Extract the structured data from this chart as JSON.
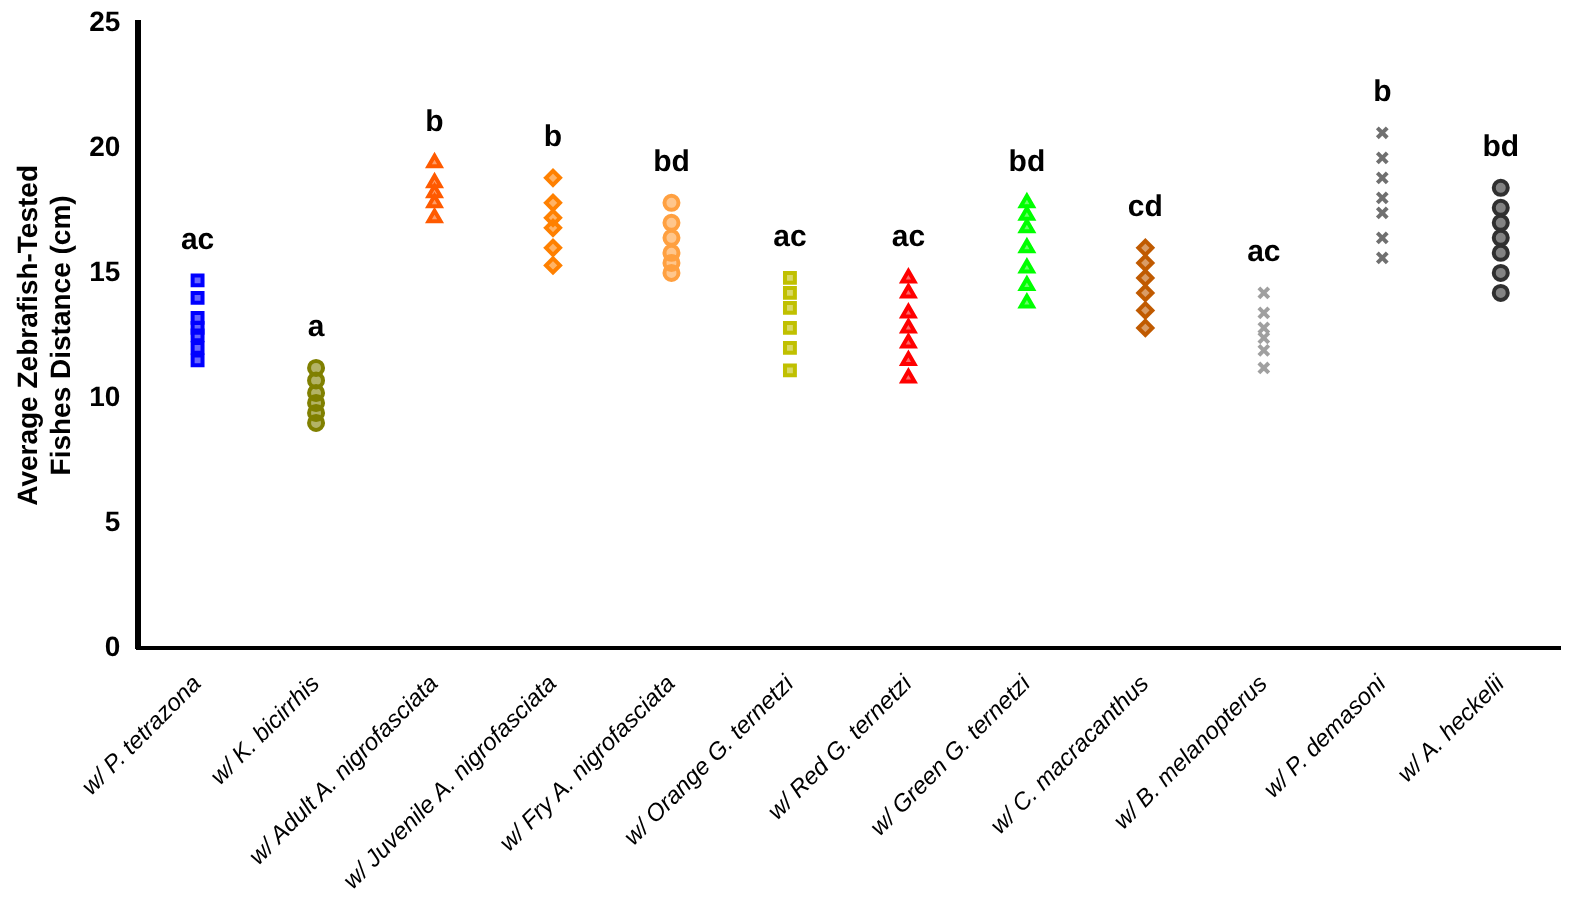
{
  "chart_data": {
    "type": "scatter",
    "ylabel": "Average Zebrafish-Tested Fishes Distance (cm)",
    "categories": [
      "w/ P. tetrazona",
      "w/ K. bicirrhis",
      "w/ Adult A. nigrofasciata",
      "w/ Juvenile A. nigrofasciata",
      "w/ Fry A. nigrofasciata",
      "w/ Orange G. ternetzi",
      "w/ Red G. ternetzi",
      "w/ Green G. ternetzi",
      "w/ C. macracanthus",
      "w/ B. melanopterus",
      "w/ P. demasoni",
      "w/ A. heckelii"
    ],
    "ylim": [
      0,
      25
    ],
    "yticks": [
      0,
      5,
      10,
      15,
      20,
      25
    ],
    "grid": false,
    "legend": false,
    "series": [
      {
        "color": "#0000ff",
        "marker": "square",
        "x": [
          "w/ P. tetrazona",
          "w/ P. tetrazona",
          "w/ P. tetrazona",
          "w/ P. tetrazona",
          "w/ P. tetrazona",
          "w/ P. tetrazona",
          "w/ P. tetrazona"
        ],
        "values": [
          11.5,
          12,
          12.5,
          12.8,
          13.2,
          14,
          14.7
        ]
      },
      {
        "color": "#808000",
        "marker": "circle",
        "x": [
          "w/ K. bicirrhis",
          "w/ K. bicirrhis",
          "w/ K. bicirrhis",
          "w/ K. bicirrhis",
          "w/ K. bicirrhis",
          "w/ K. bicirrhis"
        ],
        "values": [
          9,
          9.4,
          9.8,
          10.2,
          10.7,
          11.2
        ]
      },
      {
        "color": "#ff5a00",
        "marker": "triangle",
        "x": [
          "w/ Adult A. nigrofasciata",
          "w/ Adult A. nigrofasciata",
          "w/ Adult A. nigrofasciata",
          "w/ Adult A. nigrofasciata",
          "w/ Adult A. nigrofasciata"
        ],
        "values": [
          17.2,
          17.8,
          18.2,
          18.6,
          19.4
        ]
      },
      {
        "color": "#ff8000",
        "marker": "diamond",
        "x": [
          "w/ Juvenile A. nigrofasciata",
          "w/ Juvenile A. nigrofasciata",
          "w/ Juvenile A. nigrofasciata",
          "w/ Juvenile A. nigrofasciata",
          "w/ Juvenile A. nigrofasciata",
          "w/ Juvenile A. nigrofasciata"
        ],
        "values": [
          15.3,
          16,
          16.8,
          17.2,
          17.8,
          18.8
        ]
      },
      {
        "color": "#ffa040",
        "marker": "circle",
        "x": [
          "w/ Fry A. nigrofasciata",
          "w/ Fry A. nigrofasciata",
          "w/ Fry A. nigrofasciata",
          "w/ Fry A. nigrofasciata",
          "w/ Fry A. nigrofasciata",
          "w/ Fry A. nigrofasciata"
        ],
        "values": [
          15,
          15.4,
          15.8,
          16.4,
          17,
          17.8
        ]
      },
      {
        "color": "#c0c000",
        "marker": "square",
        "x": [
          "w/ Orange G. ternetzi",
          "w/ Orange G. ternetzi",
          "w/ Orange G. ternetzi",
          "w/ Orange G. ternetzi",
          "w/ Orange G. ternetzi",
          "w/ Orange G. ternetzi"
        ],
        "values": [
          11.1,
          12,
          12.8,
          13.6,
          14.2,
          14.8
        ]
      },
      {
        "color": "#ff0000",
        "marker": "triangle",
        "x": [
          "w/ Red G. ternetzi",
          "w/ Red G. ternetzi",
          "w/ Red G. ternetzi",
          "w/ Red G. ternetzi",
          "w/ Red G. ternetzi",
          "w/ Red G. ternetzi",
          "w/ Red G. ternetzi"
        ],
        "values": [
          10.8,
          11.5,
          12.2,
          12.8,
          13.4,
          14.2,
          14.8
        ]
      },
      {
        "color": "#00ff00",
        "marker": "triangle",
        "x": [
          "w/ Green G. ternetzi",
          "w/ Green G. ternetzi",
          "w/ Green G. ternetzi",
          "w/ Green G. ternetzi",
          "w/ Green G. ternetzi",
          "w/ Green G. ternetzi",
          "w/ Green G. ternetzi"
        ],
        "values": [
          13.8,
          14.5,
          15.2,
          16,
          16.8,
          17.3,
          17.8
        ]
      },
      {
        "color": "#c05a00",
        "marker": "diamond",
        "x": [
          "w/ C. macracanthus",
          "w/ C. macracanthus",
          "w/ C. macracanthus",
          "w/ C. macracanthus",
          "w/ C. macracanthus",
          "w/ C. macracanthus"
        ],
        "values": [
          12.8,
          13.5,
          14.2,
          14.8,
          15.4,
          16
        ]
      },
      {
        "color": "#a0a0a0",
        "marker": "cross",
        "x": [
          "w/ B. melanopterus",
          "w/ B. melanopterus",
          "w/ B. melanopterus",
          "w/ B. melanopterus",
          "w/ B. melanopterus",
          "w/ B. melanopterus"
        ],
        "values": [
          11.2,
          11.9,
          12.4,
          12.8,
          13.4,
          14.2
        ]
      },
      {
        "color": "#707070",
        "marker": "cross",
        "x": [
          "w/ P. demasoni",
          "w/ P. demasoni",
          "w/ P. demasoni",
          "w/ P. demasoni",
          "w/ P. demasoni",
          "w/ P. demasoni",
          "w/ P. demasoni"
        ],
        "values": [
          15.6,
          16.4,
          17.4,
          18,
          18.8,
          19.6,
          20.6
        ]
      },
      {
        "color": "#303030",
        "marker": "circle",
        "x": [
          "w/ A. heckelii",
          "w/ A. heckelii",
          "w/ A. heckelii",
          "w/ A. heckelii",
          "w/ A. heckelii",
          "w/ A. heckelii",
          "w/ A. heckelii"
        ],
        "values": [
          14.2,
          15,
          15.8,
          16.4,
          17,
          17.6,
          18.4
        ]
      }
    ],
    "annotations": [
      "ac",
      "a",
      "b",
      "b",
      "bd",
      "ac",
      "ac",
      "bd",
      "cd",
      "ac",
      "b",
      "bd"
    ]
  }
}
